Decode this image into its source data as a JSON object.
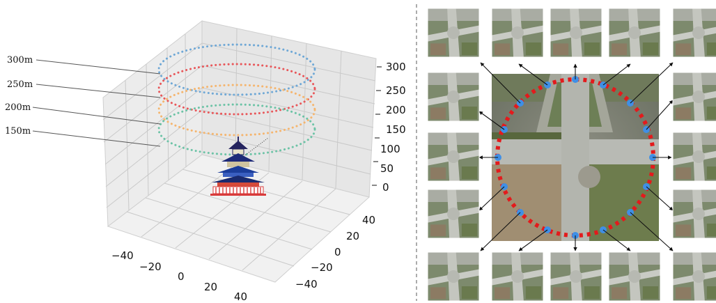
{
  "colors": {
    "ring_300": "#6fa8d6",
    "ring_250": "#e8575a",
    "ring_200": "#f5b56e",
    "ring_150": "#6cc3a6",
    "capture_point": "#3f8fe6",
    "sample_ring": "#e31a1c",
    "divider": "#888888"
  },
  "left_panel": {
    "altitude_labels": [
      "300m",
      "250m",
      "200m",
      "150m"
    ],
    "z_ticks": [
      "300",
      "250",
      "200",
      "150",
      "100",
      "50",
      "0"
    ],
    "x_ticks": [
      "−40",
      "−20",
      "0",
      "20",
      "40"
    ],
    "y_ticks": [
      "40",
      "20",
      "0",
      "−20",
      "−40"
    ],
    "center_icon": "temple-of-heaven-icon"
  },
  "right_panel": {
    "center_image": "aerial-intersection-image",
    "sample_ring_style": "dotted-red-circle",
    "thumbnail_count": 16,
    "thumbnail_image": "oblique-intersection-view"
  }
}
